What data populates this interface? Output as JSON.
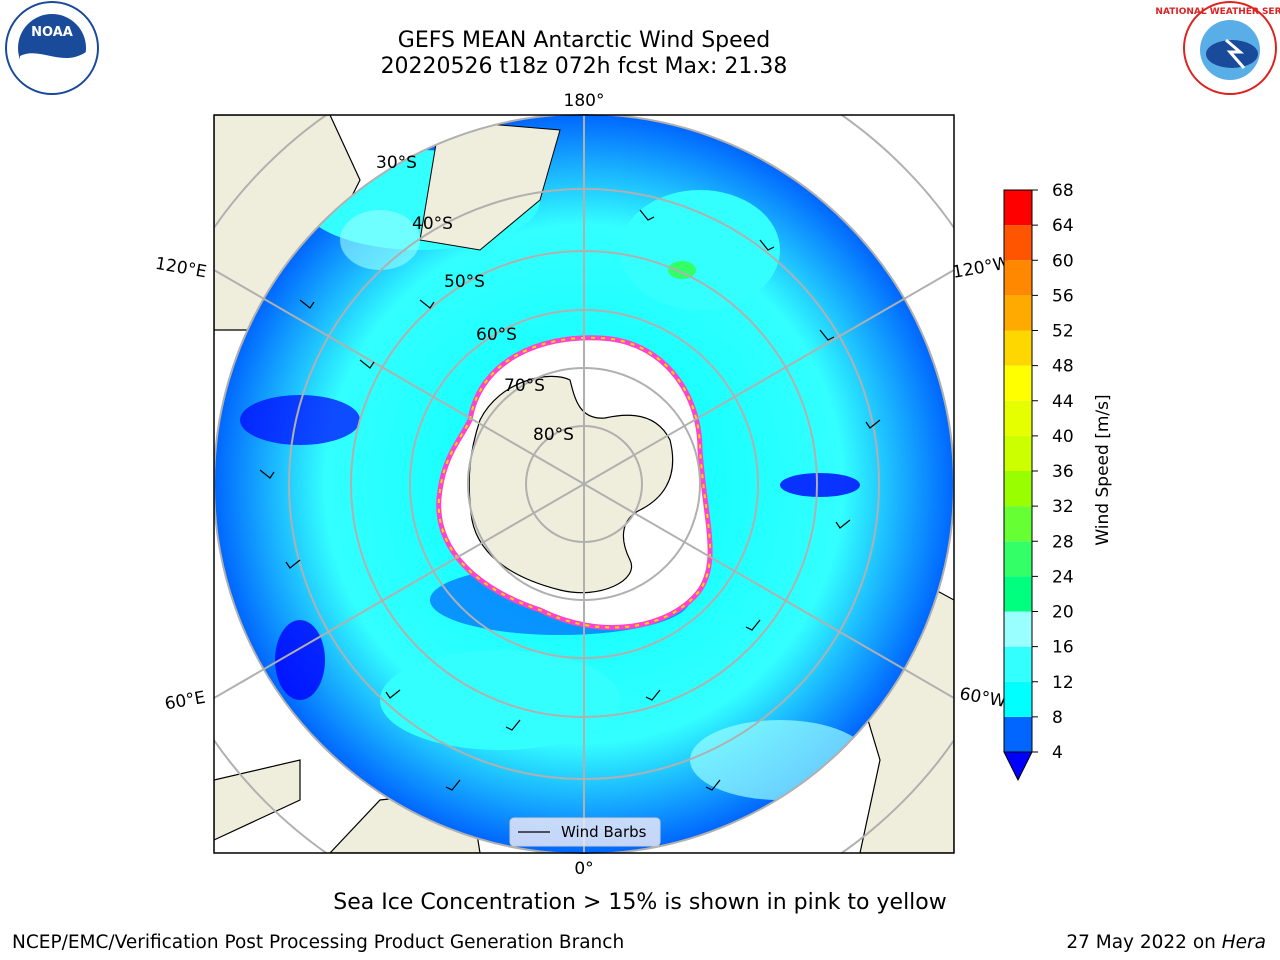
{
  "title": {
    "line1": "GEFS MEAN Antarctic Wind Speed",
    "line2": "20220526 t18z 072h fcst   Max: 21.38"
  },
  "map": {
    "longitude_labels": [
      "180°",
      "120°E",
      "120°W",
      "60°E",
      "60°W",
      "0°"
    ],
    "latitude_labels": [
      "30°S",
      "40°S",
      "50°S",
      "60°S",
      "70°S",
      "80°S"
    ],
    "legend_label": "Wind Barbs"
  },
  "colorbar": {
    "label": "Wind Speed [m/s]",
    "ticks": [
      "4",
      "8",
      "12",
      "16",
      "20",
      "24",
      "28",
      "32",
      "36",
      "40",
      "44",
      "48",
      "52",
      "56",
      "60",
      "64",
      "68"
    ],
    "colors": [
      "#0000ff",
      "#0066ff",
      "#00ffff",
      "#33ffff",
      "#99ffff",
      "#00ff7f",
      "#33ff66",
      "#66ff33",
      "#99ff00",
      "#ccff00",
      "#e6ff00",
      "#ffff00",
      "#ffd700",
      "#ffaa00",
      "#ff8800",
      "#ff5500",
      "#ff0000"
    ]
  },
  "note": "Sea Ice Concentration > 15% is shown in pink to yellow",
  "footer": {
    "left": "NCEP/EMC/Verification Post Processing Product Generation Branch",
    "date": "27 May 2022 on ",
    "machine": "Hera"
  },
  "logos": {
    "noaa": "NOAA",
    "nws": "NATIONAL WEATHER SERVICE"
  }
}
